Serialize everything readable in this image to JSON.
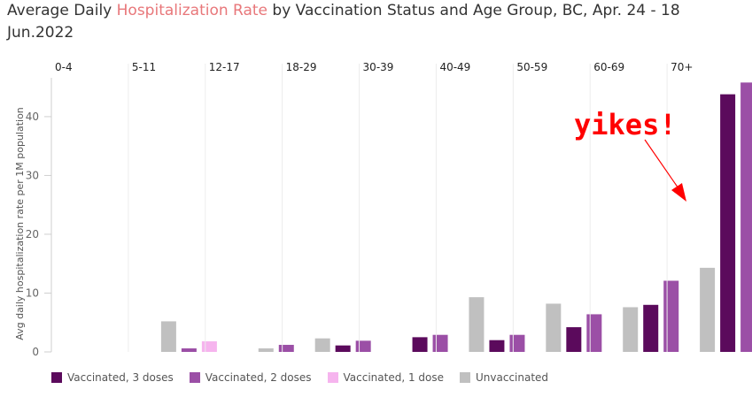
{
  "title": {
    "prefix": "Average Daily ",
    "highlight": "Hospitalization Rate",
    "suffix": " by Vaccination Status and Age Group, BC,  Apr. 24 - 18 Jun.2022"
  },
  "colors": {
    "vaccinated_3": "#5b0a5c",
    "vaccinated_2": "#9b4fa6",
    "vaccinated_1": "#f6b4ee",
    "unvaccinated": "#c0c0c0",
    "annotation": "#ff0000",
    "highlight": "#e8777a"
  },
  "annotation": {
    "text": "yikes!"
  },
  "chart_data": {
    "type": "bar",
    "title": "Average Daily Hospitalization Rate by Vaccination Status and Age Group, BC,  Apr. 24 - 18 Jun.2022",
    "ylabel": "Avg daily hospitalization rate per 1M population",
    "ylim": [
      0,
      46
    ],
    "yticks": [
      0,
      10,
      20,
      30,
      40
    ],
    "grid": false,
    "legend_position": "bottom",
    "categories": [
      "0-4",
      "5-11",
      "12-17",
      "18-29",
      "30-39",
      "40-49",
      "50-59",
      "60-69",
      "70+"
    ],
    "series": [
      {
        "name": "Unvaccinated",
        "key": "unvaccinated",
        "values": [
          null,
          5.2,
          0.6,
          2.3,
          null,
          9.3,
          8.2,
          7.6,
          14.3
        ]
      },
      {
        "name": "Vaccinated, 1 dose",
        "key": "vaccinated_1",
        "values": [
          null,
          1.8,
          null,
          null,
          null,
          null,
          null,
          null,
          null
        ]
      },
      {
        "name": "Vaccinated, 2 doses",
        "key": "vaccinated_2",
        "values": [
          null,
          0.6,
          1.2,
          1.9,
          2.9,
          2.9,
          6.4,
          12.1,
          45.8
        ]
      },
      {
        "name": "Vaccinated, 3 doses",
        "key": "vaccinated_3",
        "values": [
          null,
          null,
          null,
          1.1,
          2.5,
          2.0,
          4.2,
          8.0,
          43.8
        ]
      }
    ],
    "legend": [
      "Vaccinated, 3 doses",
      "Vaccinated, 2 doses",
      "Vaccinated, 1 dose",
      "Unvaccinated"
    ],
    "legend_keys": [
      "vaccinated_3",
      "vaccinated_2",
      "vaccinated_1",
      "unvaccinated"
    ]
  }
}
